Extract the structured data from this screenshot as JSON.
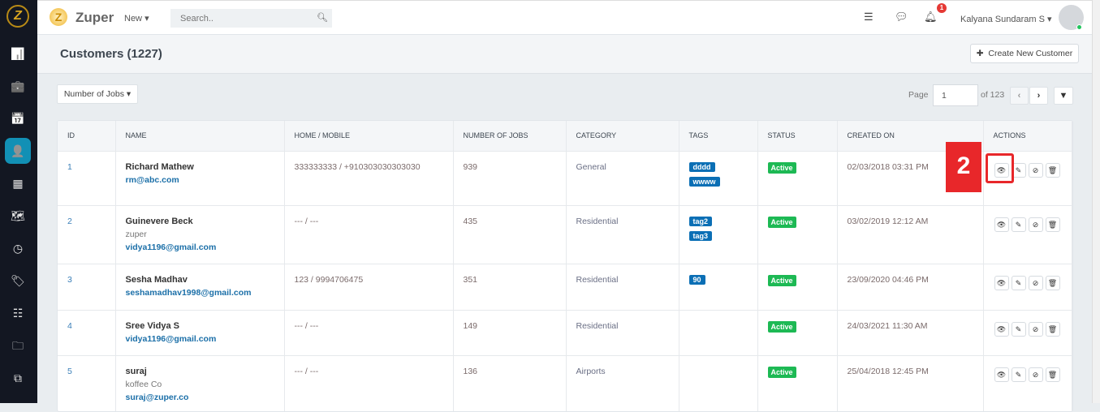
{
  "app": {
    "brand": "Zuper",
    "logo_letter": "Z",
    "new_label": "New",
    "search_placeholder": "Search..",
    "user": "Kalyana Sundaram S",
    "notification_count": "1"
  },
  "sidebar": {
    "items": [
      {
        "icon": "chart-icon",
        "glyph": "📊"
      },
      {
        "icon": "briefcase-icon",
        "glyph": "💼"
      },
      {
        "icon": "calendar-icon",
        "glyph": "📅"
      },
      {
        "icon": "customers-icon",
        "glyph": "👤",
        "active": true
      },
      {
        "icon": "building-icon",
        "glyph": "▦"
      },
      {
        "icon": "map-icon",
        "glyph": "🗺"
      },
      {
        "icon": "clock-icon",
        "glyph": "◷"
      },
      {
        "icon": "tag-icon",
        "glyph": "🏷"
      },
      {
        "icon": "checklist-icon",
        "glyph": "☷"
      },
      {
        "icon": "folder-icon",
        "glyph": "🗀"
      },
      {
        "icon": "documents-icon",
        "glyph": "⧉"
      }
    ]
  },
  "page": {
    "title": "Customers (1227)",
    "create_label": "Create New Customer",
    "filter_label": "Number of Jobs",
    "page_label": "Page",
    "page_value": "1",
    "page_of": "of 123"
  },
  "table": {
    "headers": [
      "ID",
      "NAME",
      "HOME / MOBILE",
      "NUMBER OF JOBS",
      "CATEGORY",
      "TAGS",
      "STATUS",
      "CREATED ON",
      "ACTIONS"
    ],
    "rows": [
      {
        "id": "1",
        "name": "Richard Mathew",
        "company": "",
        "email": "rm@abc.com",
        "phone": "333333333 / +910303030303030",
        "jobs": "939",
        "category": "General",
        "tags": [
          "dddd",
          "wwww"
        ],
        "status": "Active",
        "created": "02/03/2018 03:31 PM"
      },
      {
        "id": "2",
        "name": "Guinevere Beck",
        "company": "zuper",
        "email": "vidya1196@gmail.com",
        "phone": "--- / ---",
        "jobs": "435",
        "category": "Residential",
        "tags": [
          "tag2",
          "tag3"
        ],
        "status": "Active",
        "created": "03/02/2019 12:12 AM"
      },
      {
        "id": "3",
        "name": "Sesha Madhav",
        "company": "",
        "email": "seshamadhav1998@gmail.com",
        "phone": "123 / 9994706475",
        "jobs": "351",
        "category": "Residential",
        "tags": [
          "90"
        ],
        "status": "Active",
        "created": "23/09/2020 04:46 PM"
      },
      {
        "id": "4",
        "name": "Sree Vidya S",
        "company": "",
        "email": "vidya1196@gmail.com",
        "phone": "--- / ---",
        "jobs": "149",
        "category": "Residential",
        "tags": [],
        "status": "Active",
        "created": "24/03/2021 11:30 AM"
      },
      {
        "id": "5",
        "name": "suraj",
        "company": "koffee Co",
        "email": "suraj@zuper.co",
        "phone": "--- / ---",
        "jobs": "136",
        "category": "Airports",
        "tags": [],
        "status": "Active",
        "created": "25/04/2018 12:45 PM"
      }
    ]
  },
  "annotation": {
    "label": "2",
    "color": "#e8272a"
  },
  "colors": {
    "sidebar": "#131722",
    "accent": "#1290b5",
    "tag": "#0b6fb5",
    "active": "#1db954"
  }
}
